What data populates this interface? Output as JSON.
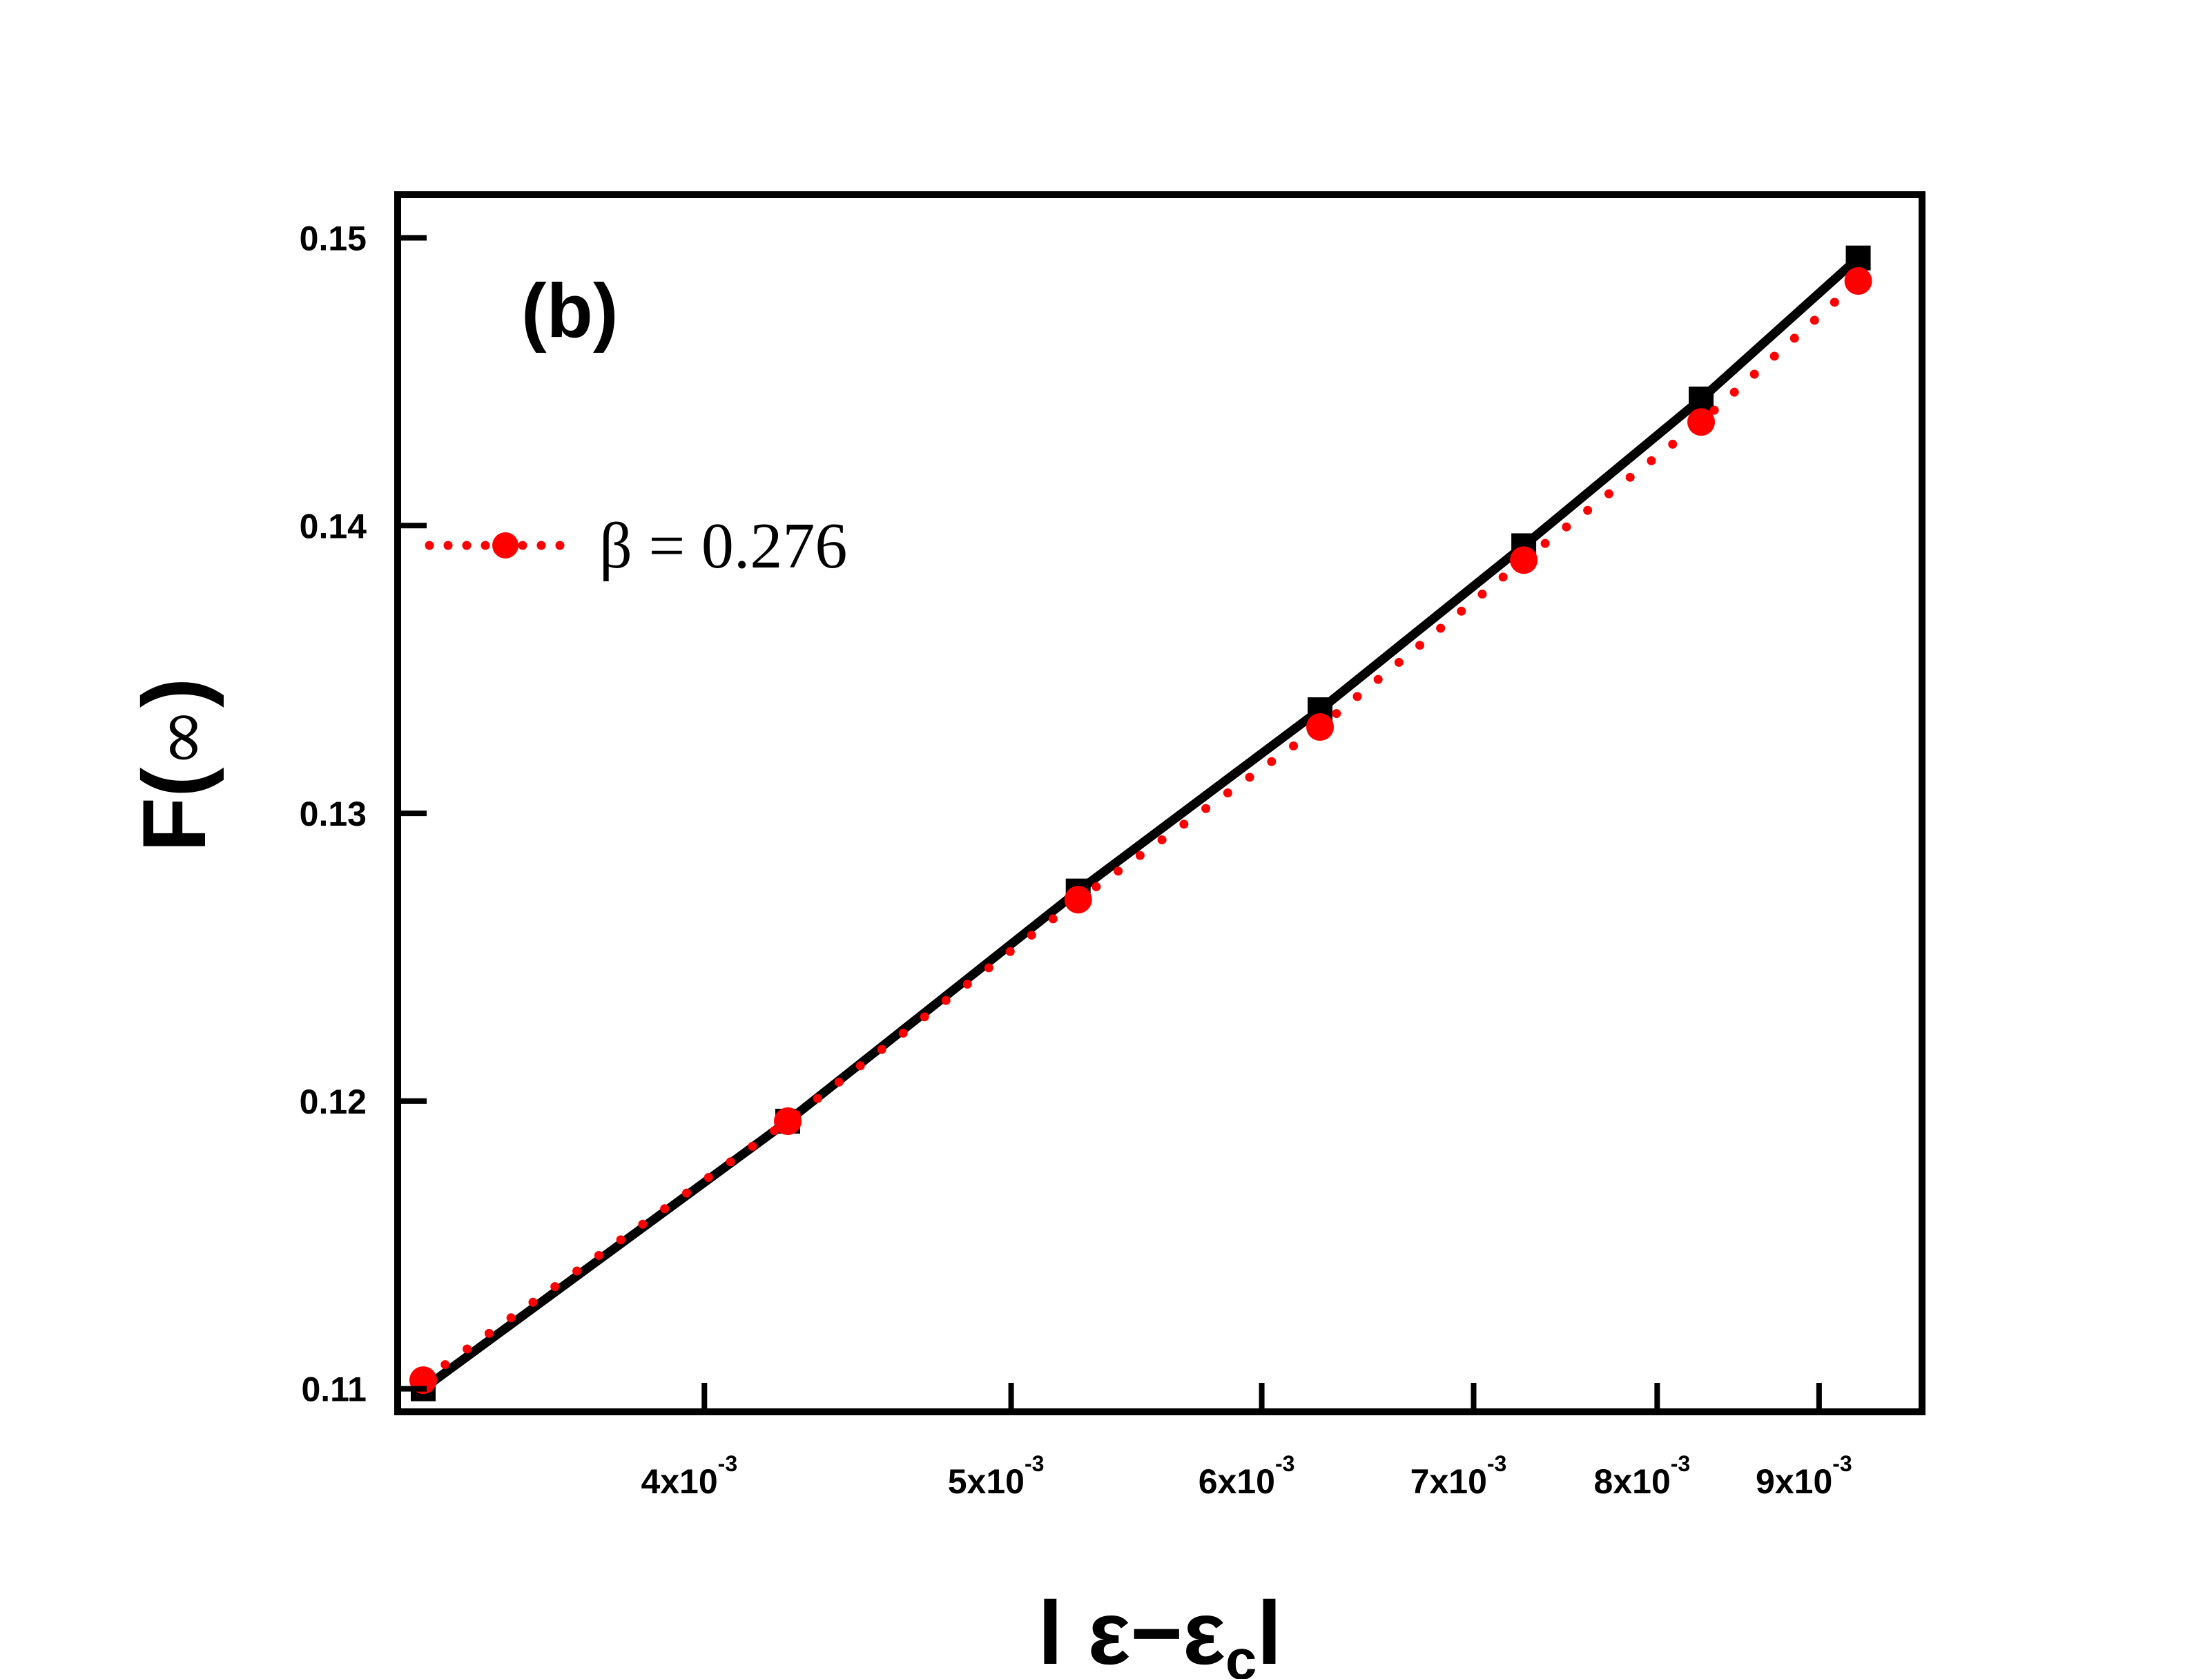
{
  "chart_data": {
    "type": "line",
    "panel_label": "(b)",
    "xlabel": {
      "pre": "l ε−ε",
      "sub": "c",
      "post": "l"
    },
    "ylabel": {
      "pre": "F(",
      "sym": "∞",
      "post": ")"
    },
    "xscale": "log",
    "xlim": [
      0.0032,
      0.0097
    ],
    "ylim": [
      0.1092,
      0.1515
    ],
    "xticks": [
      {
        "value": 0.004,
        "mantissa": "4x10",
        "exp": "-3"
      },
      {
        "value": 0.005,
        "mantissa": "5x10",
        "exp": "-3"
      },
      {
        "value": 0.006,
        "mantissa": "6x10",
        "exp": "-3"
      },
      {
        "value": 0.007,
        "mantissa": "7x10",
        "exp": "-3"
      },
      {
        "value": 0.008,
        "mantissa": "8x10",
        "exp": "-3"
      },
      {
        "value": 0.009,
        "mantissa": "9x10",
        "exp": "-3"
      }
    ],
    "yticks": [
      {
        "value": 0.11,
        "label": "0.11"
      },
      {
        "value": 0.12,
        "label": "0.12"
      },
      {
        "value": 0.13,
        "label": "0.13"
      },
      {
        "value": 0.14,
        "label": "0.14"
      },
      {
        "value": 0.15,
        "label": "0.15"
      }
    ],
    "legend": {
      "label": "β = 0.276",
      "position": "upper-left"
    },
    "series": [
      {
        "name": "",
        "style": "solid-line-square",
        "color": "#000000",
        "x": [
          0.00326,
          0.00425,
          0.00525,
          0.00626,
          0.00726,
          0.00826,
          0.00926
        ],
        "y": [
          0.11,
          0.1193,
          0.1273,
          0.1336,
          0.1393,
          0.1444,
          0.1493
        ]
      },
      {
        "name": "β = 0.276",
        "style": "dotted-line-circle",
        "color": "#ff0000",
        "x": [
          0.00326,
          0.00425,
          0.00525,
          0.00626,
          0.00726,
          0.00826,
          0.00926
        ],
        "y": [
          0.1103,
          0.1193,
          0.127,
          0.133,
          0.1388,
          0.1436,
          0.1485
        ]
      }
    ],
    "grid": false
  }
}
